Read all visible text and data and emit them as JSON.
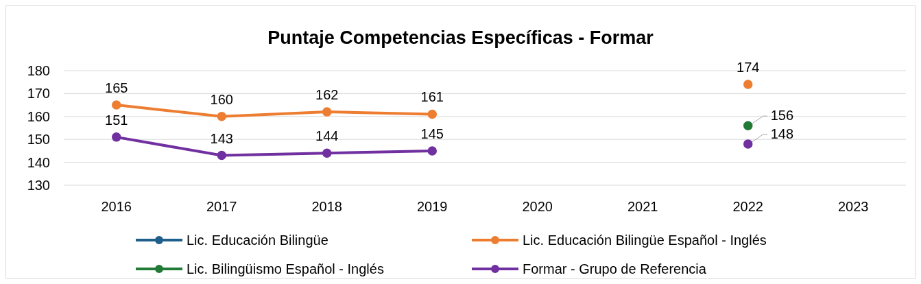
{
  "chart_data": {
    "type": "line",
    "title": "Puntaje Competencias Específicas - Formar",
    "categories": [
      "2016",
      "2017",
      "2018",
      "2019",
      "2020",
      "2021",
      "2022",
      "2023"
    ],
    "series": [
      {
        "name": "Lic. Educación Bilingüe",
        "color": "#1f5f8b",
        "values": [
          null,
          null,
          null,
          null,
          null,
          null,
          null,
          null
        ]
      },
      {
        "name": "Lic. Educación Bilingüe Español - Inglés",
        "color": "#ed7d31",
        "values": [
          165,
          160,
          162,
          161,
          null,
          null,
          174,
          null
        ]
      },
      {
        "name": "Lic. Bilingüismo Español - Inglés",
        "color": "#217a35",
        "values": [
          null,
          null,
          null,
          null,
          null,
          null,
          156,
          null
        ]
      },
      {
        "name": "Formar - Grupo de Referencia",
        "color": "#7030a0",
        "values": [
          151,
          143,
          144,
          145,
          null,
          null,
          148,
          null
        ]
      }
    ],
    "ylim": [
      130,
      180
    ],
    "yticks": [
      130,
      140,
      150,
      160,
      170,
      180
    ],
    "grid": "y",
    "legend": "bottom",
    "marker": "circle",
    "line_style": "solid",
    "data_labels": true
  }
}
